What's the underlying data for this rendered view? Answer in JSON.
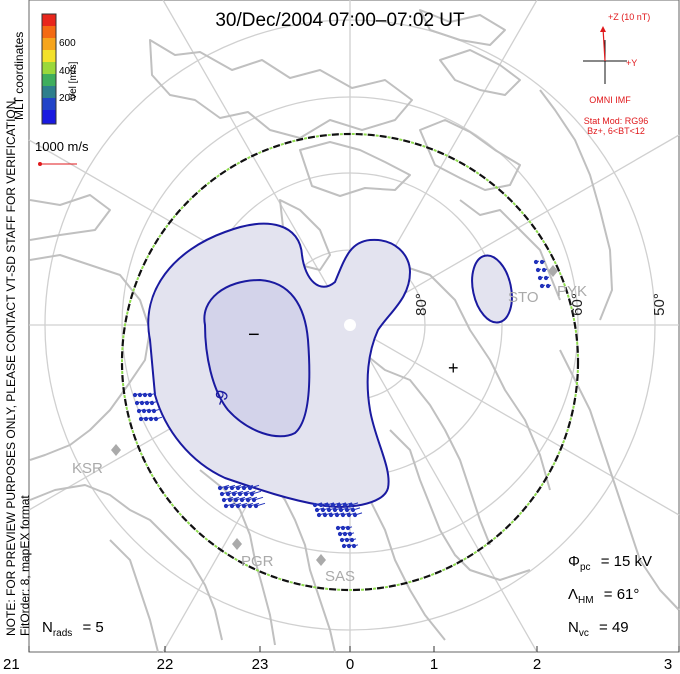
{
  "title": "30/Dec/2004 07:00–07:02 UT",
  "coordinates_label": "MLT coordinates",
  "colorbar": {
    "label": "Vel [m/s]",
    "ticks": [
      "600",
      "400",
      "200"
    ],
    "colors": [
      "#e8261c",
      "#f46a13",
      "#f6a51d",
      "#f3e12b",
      "#9ad83b",
      "#3fae5d",
      "#2e7f8c",
      "#2244c8",
      "#1a1ae0"
    ]
  },
  "velocity_scale": {
    "label": "1000 m/s",
    "color": "#e0191c"
  },
  "preview_note": "NOTE: FOR PREVIEW PURPOSES ONLY, PLEASE CONTACT VT-SD STAFF FOR VERIFICATION.",
  "fit_order": "FitOrder: 8, mapEX format",
  "imf": {
    "z_label": "+Z (10 nT)",
    "y_label": "+Y",
    "source": "OMNI IMF",
    "model": "Stat Mod: RG96",
    "condition": "Bz+, 6<BT<12"
  },
  "latitude_labels": [
    "80°",
    "60°",
    "50°"
  ],
  "stations": [
    "STO",
    "PYK",
    "KSR",
    "PGR",
    "SAS"
  ],
  "potential_labels": {
    "min_marker": "−",
    "max_marker": "+",
    "contour_value": "-9"
  },
  "stats": {
    "phi_pc": {
      "symbol": "Φ",
      "sub": "pc",
      "value": "= 15 kV"
    },
    "lambda_hm": {
      "symbol": "Λ",
      "sub": "HM",
      "value": "= 61°"
    },
    "n_vc": {
      "symbol": "N",
      "sub": "vc",
      "value": "= 49"
    },
    "n_rads": {
      "symbol": "N",
      "sub": "rads",
      "value": "= 5"
    }
  },
  "mlt_ticks": [
    "21",
    "22",
    "23",
    "0",
    "1",
    "2",
    "3"
  ],
  "colors": {
    "contour": "#1a1aa0",
    "fill_light": "#e3e3ef",
    "fill_dark": "#d3d3ea",
    "coastline": "#c0c0c0",
    "grid": "#d0d0d0",
    "boundary_green": "#8fdc4e",
    "vector_blue": "#2233bb"
  }
}
